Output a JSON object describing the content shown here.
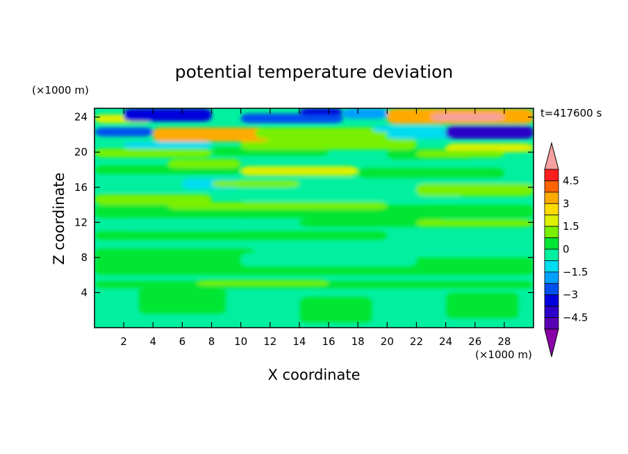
{
  "chart_data": {
    "type": "heatmap",
    "title": "potential temperature deviation",
    "xlabel": "X coordinate",
    "ylabel": "Z coordinate",
    "x_unit": "(×1000 m)",
    "y_unit": "(×1000 m)",
    "time_label": "t=417600 s",
    "xlim": [
      0,
      30
    ],
    "ylim": [
      0,
      25
    ],
    "x_ticks": [
      2,
      4,
      6,
      8,
      10,
      12,
      14,
      16,
      18,
      20,
      22,
      24,
      26,
      28
    ],
    "y_ticks": [
      4,
      8,
      12,
      16,
      20,
      24
    ],
    "colorbar": {
      "levels": [
        -5.25,
        -4.5,
        -3.75,
        -3,
        -2.25,
        -1.5,
        -0.75,
        0,
        0.75,
        1.5,
        2.25,
        3,
        3.75,
        4.5,
        5.25
      ],
      "tick_labels": [
        "4.5",
        "3",
        "1.5",
        "0",
        "−1.5",
        "−3",
        "−4.5"
      ],
      "tick_values": [
        4.5,
        3,
        1.5,
        0,
        -1.5,
        -3,
        -4.5
      ],
      "colors": [
        "#8a00a8",
        "#5a00b4",
        "#2c00c8",
        "#0000dc",
        "#0050f0",
        "#00a0ff",
        "#00dcf0",
        "#00f0a0",
        "#00e632",
        "#78f000",
        "#dcf000",
        "#ffdc00",
        "#ffaa00",
        "#ff6400",
        "#ff1e1e",
        "#f5a0a0"
      ],
      "extend": "both"
    },
    "grid": false
  }
}
